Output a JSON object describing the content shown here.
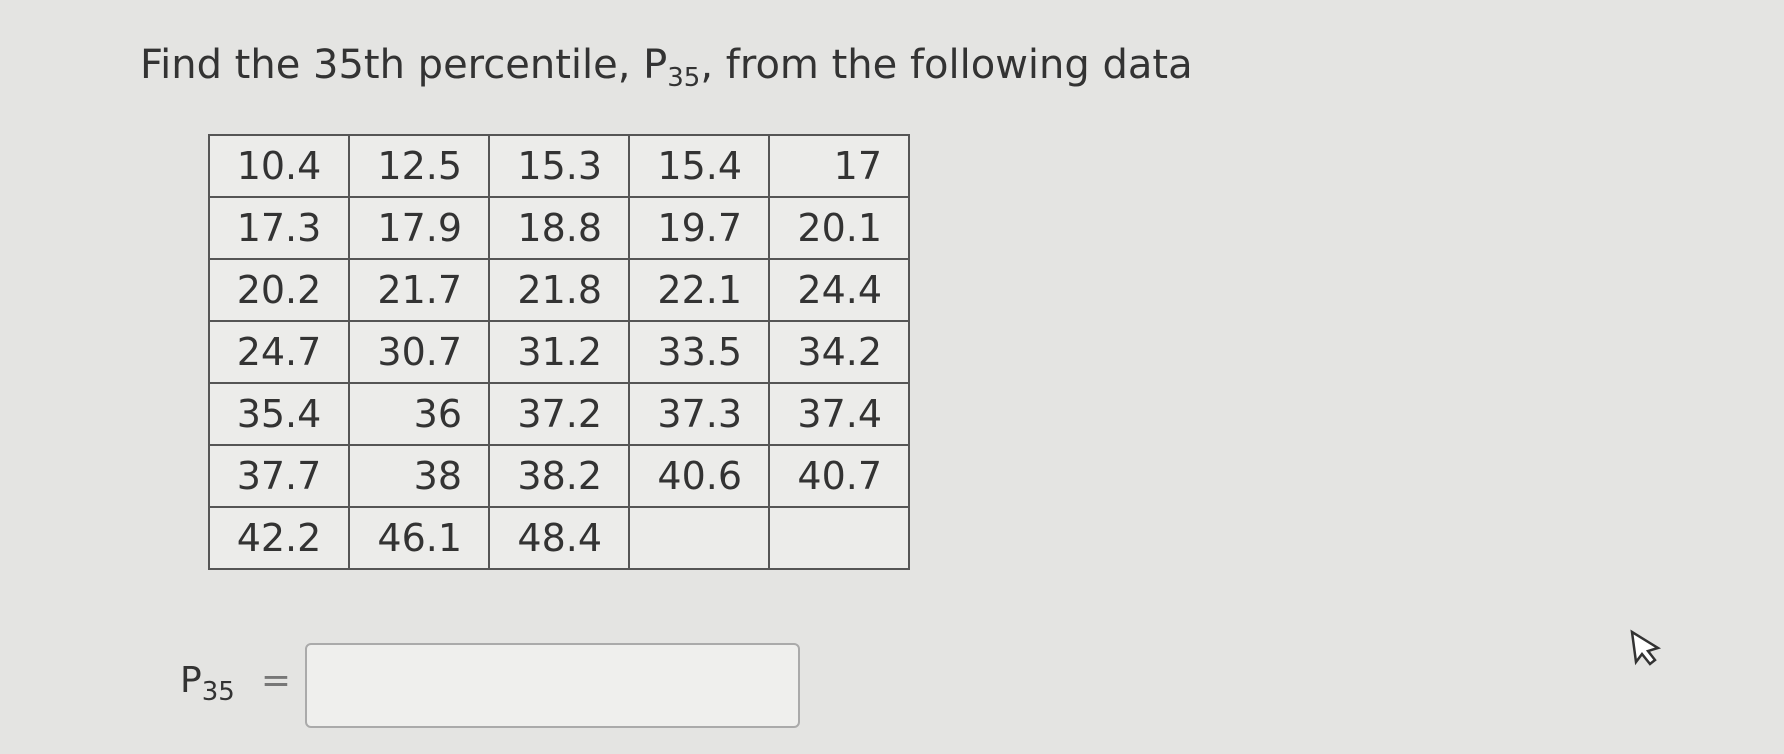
{
  "question": {
    "prefix": "Find the 35th percentile, P",
    "subscript": "35",
    "suffix": ", from the following data"
  },
  "table": {
    "rows": [
      [
        10.4,
        12.5,
        15.3,
        15.4,
        17
      ],
      [
        17.3,
        17.9,
        18.8,
        19.7,
        20.1
      ],
      [
        20.2,
        21.7,
        21.8,
        22.1,
        24.4
      ],
      [
        24.7,
        30.7,
        31.2,
        33.5,
        34.2
      ],
      [
        35.4,
        36,
        37.2,
        37.3,
        37.4
      ],
      [
        37.7,
        38,
        38.2,
        40.6,
        40.7
      ],
      [
        42.2,
        46.1,
        48.4
      ]
    ]
  },
  "answer": {
    "label": "P",
    "subscript": "35",
    "equals": "="
  }
}
